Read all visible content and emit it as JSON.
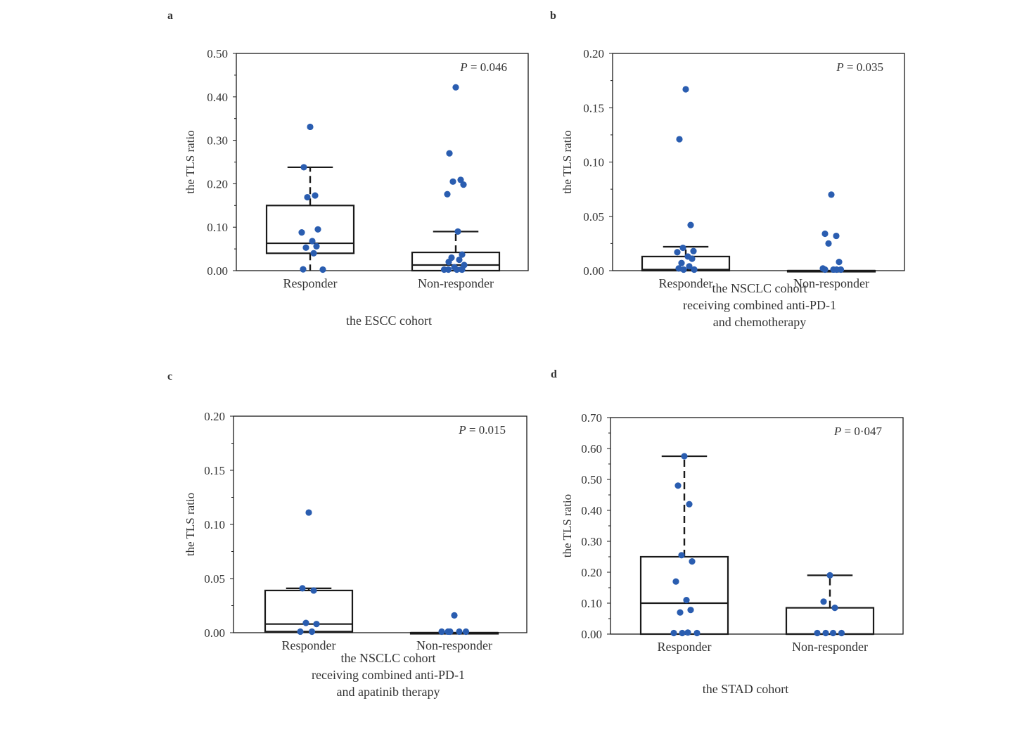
{
  "chart_data": [
    {
      "type": "box",
      "panel": "a",
      "ylabel": "the TLS ratio",
      "ylim": [
        0,
        0.5
      ],
      "yticks": [
        "0.00",
        "0.10",
        "0.20",
        "0.30",
        "0.40",
        "0.50"
      ],
      "categories": [
        "Responder",
        "Non-responder"
      ],
      "p_prefix": "P",
      "p_value": " = 0.046",
      "caption_lines": [
        "the ESCC cohort"
      ],
      "groups": [
        {
          "name": "Responder",
          "box": {
            "q1": 0.04,
            "median": 0.063,
            "q3": 0.15,
            "low": 0.0,
            "high": 0.238
          },
          "points": [
            0.331,
            0.238,
            0.173,
            0.169,
            0.095,
            0.088,
            0.068,
            0.056,
            0.053,
            0.04,
            0.003,
            0.0
          ]
        },
        {
          "name": "Non-responder",
          "box": {
            "q1": 0.0,
            "median": 0.013,
            "q3": 0.042,
            "low": 0.0,
            "high": 0.09
          },
          "points": [
            0.422,
            0.27,
            0.209,
            0.205,
            0.198,
            0.176,
            0.09,
            0.037,
            0.03,
            0.025,
            0.02,
            0.013,
            0.008,
            0.003,
            0.0,
            0.0,
            0.0,
            0.0
          ]
        }
      ]
    },
    {
      "type": "box",
      "panel": "b",
      "ylabel": "the TLS ratio",
      "ylim": [
        0,
        0.2
      ],
      "yticks": [
        "0.00",
        "0.05",
        "0.10",
        "0.15",
        "0.20"
      ],
      "categories": [
        "Responder",
        "Non-responder"
      ],
      "p_prefix": "P",
      "p_value": " = 0.035",
      "caption_lines": [
        "the NSCLC cohort",
        "receiving combined anti-PD-1",
        "and chemotherapy"
      ],
      "groups": [
        {
          "name": "Responder",
          "box": {
            "q1": 0.0,
            "median": 0.001,
            "q3": 0.013,
            "low": 0.0,
            "high": 0.022
          },
          "points": [
            0.167,
            0.121,
            0.042,
            0.021,
            0.018,
            0.017,
            0.013,
            0.011,
            0.007,
            0.004,
            0.002,
            0.001,
            0.0,
            0.0
          ]
        },
        {
          "name": "Non-responder",
          "box": {
            "q1": 0.0,
            "median": 0.0,
            "q3": 0.0,
            "low": 0.0,
            "high": 0.0
          },
          "points": [
            0.07,
            0.034,
            0.032,
            0.025,
            0.008,
            0.002,
            0.001,
            0.0,
            0.0,
            0.0
          ]
        }
      ]
    },
    {
      "type": "box",
      "panel": "c",
      "ylabel": "the TLS ratio",
      "ylim": [
        0,
        0.2
      ],
      "yticks": [
        "0.00",
        "0.05",
        "0.10",
        "0.15",
        "0.20"
      ],
      "categories": [
        "Responder",
        "Non-responder"
      ],
      "p_prefix": "P",
      "p_value": " = 0.015",
      "caption_lines": [
        "the NSCLC cohort",
        "receiving combined anti-PD-1",
        "and apatinib therapy"
      ],
      "groups": [
        {
          "name": "Responder",
          "box": {
            "q1": 0.001,
            "median": 0.008,
            "q3": 0.039,
            "low": 0.0,
            "high": 0.041
          },
          "points": [
            0.111,
            0.041,
            0.039,
            0.009,
            0.008,
            0.001,
            0.0
          ]
        },
        {
          "name": "Non-responder",
          "box": {
            "q1": 0.0,
            "median": 0.0,
            "q3": 0.0,
            "low": 0.0,
            "high": 0.0
          },
          "points": [
            0.016,
            0.001,
            0.001,
            0.0,
            0.0,
            0.0
          ]
        }
      ]
    },
    {
      "type": "box",
      "panel": "d",
      "ylabel": "the TLS ratio",
      "ylim": [
        0,
        0.7
      ],
      "yticks": [
        "0.00",
        "0.10",
        "0.20",
        "0.30",
        "0.40",
        "0.50",
        "0.60",
        "0.70"
      ],
      "categories": [
        "Responder",
        "Non-responder"
      ],
      "p_prefix": "P",
      "p_value": " = 0·047",
      "caption_lines": [
        "the STAD cohort"
      ],
      "groups": [
        {
          "name": "Responder",
          "box": {
            "q1": 0.0,
            "median": 0.1,
            "q3": 0.25,
            "low": 0.0,
            "high": 0.575
          },
          "points": [
            0.575,
            0.48,
            0.42,
            0.255,
            0.235,
            0.17,
            0.11,
            0.078,
            0.07,
            0.005,
            0.0,
            0.0,
            0.0
          ]
        },
        {
          "name": "Non-responder",
          "box": {
            "q1": 0.0,
            "median": 0.0,
            "q3": 0.085,
            "low": 0.0,
            "high": 0.19
          },
          "points": [
            0.19,
            0.105,
            0.085,
            0.0,
            0.0,
            0.0,
            0.0
          ]
        }
      ]
    }
  ],
  "colors": {
    "point": "#2a5db0",
    "line": "#1a1a1a",
    "text": "#333333"
  }
}
